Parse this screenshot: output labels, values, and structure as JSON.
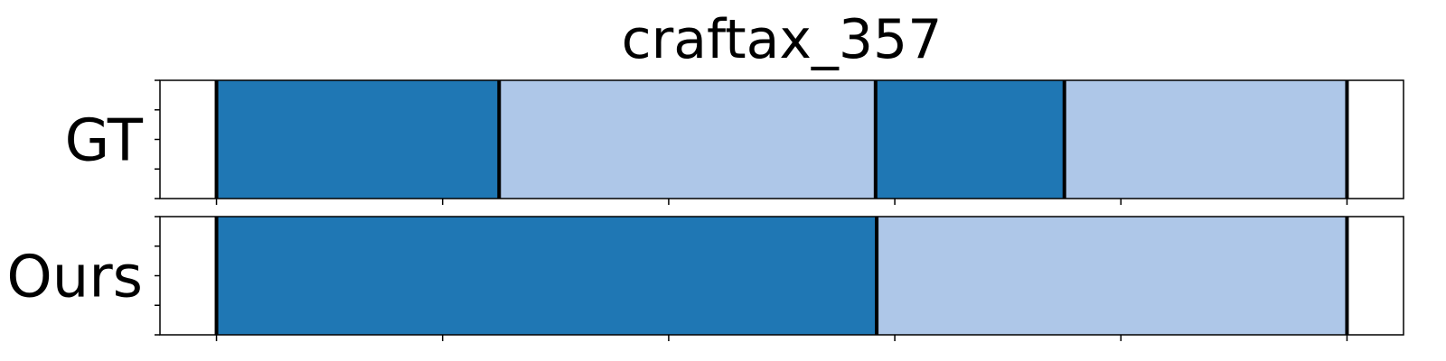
{
  "chart_data": {
    "type": "bar",
    "title": "craftax_357",
    "xlabel": "",
    "ylabel": "",
    "xlim": [
      0,
      110
    ],
    "x_ticks": [
      5,
      25,
      45,
      65,
      85,
      105
    ],
    "rows": [
      {
        "label": "GT",
        "segments": [
          {
            "start": 5,
            "end": 30,
            "color": "#1f77b4"
          },
          {
            "start": 30,
            "end": 63.3,
            "color": "#aec7e8"
          },
          {
            "start": 63.3,
            "end": 80,
            "color": "#1f77b4"
          },
          {
            "start": 80,
            "end": 105,
            "color": "#aec7e8"
          }
        ],
        "boundaries": [
          5,
          30,
          63.3,
          80,
          105
        ]
      },
      {
        "label": "Ours",
        "segments": [
          {
            "start": 5,
            "end": 63.4,
            "color": "#1f77b4"
          },
          {
            "start": 63.4,
            "end": 105,
            "color": "#aec7e8"
          }
        ],
        "boundaries": [
          5,
          63.4,
          105
        ]
      }
    ],
    "colors": {
      "dark": "#1f77b4",
      "light": "#aec7e8",
      "boundary": "#000000"
    },
    "grid": false
  }
}
